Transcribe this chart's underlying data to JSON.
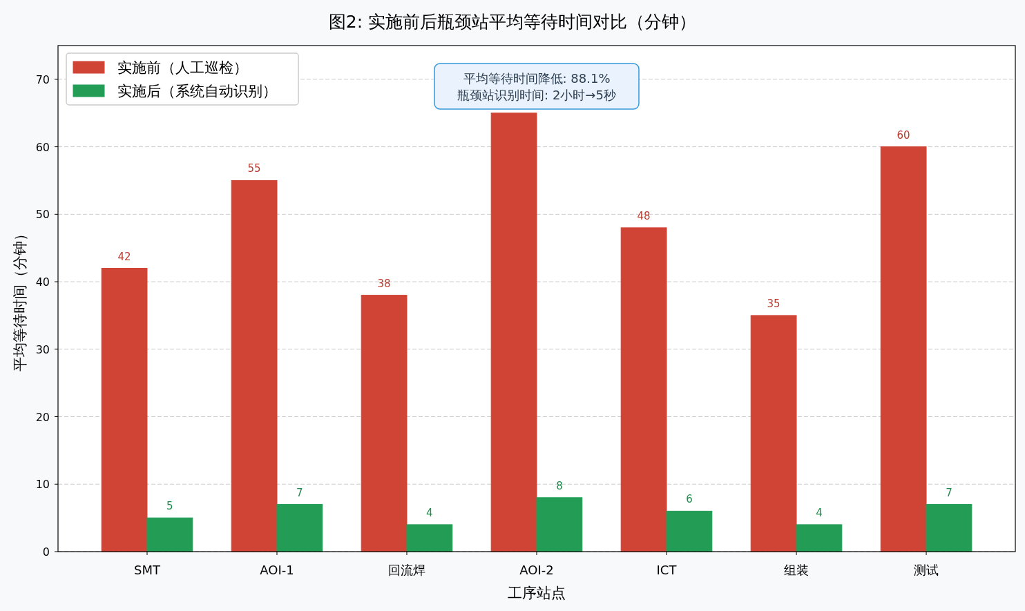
{
  "chart_data": {
    "type": "bar",
    "title": "图2: 实施前后瓶颈站平均等待时间对比（分钟）",
    "xlabel": "工序站点",
    "ylabel": "平均等待时间（分钟）",
    "categories": [
      "SMT",
      "AOI-1",
      "回流焊",
      "AOI-2",
      "ICT",
      "组装",
      "测试"
    ],
    "series": [
      {
        "name": "实施前（人工巡检）",
        "color": "#e74c3c",
        "values": [
          42,
          55,
          38,
          65,
          48,
          35,
          60
        ],
        "value_labels": [
          "42",
          "55",
          "38",
          null,
          "48",
          "35",
          "60"
        ]
      },
      {
        "name": "实施后（系统自动识别）",
        "color": "#27ae60",
        "values": [
          5,
          7,
          4,
          8,
          6,
          4,
          7
        ],
        "value_labels": [
          "5",
          "7",
          "4",
          "8",
          "6",
          "4",
          "7"
        ]
      }
    ],
    "ylim": [
      0,
      75
    ],
    "yticks": [
      0,
      10,
      20,
      30,
      40,
      50,
      60,
      70
    ],
    "grid": "y",
    "legend": "top left",
    "annotations": [
      "平均等待时间降低: 88.1%\n瓶颈站识别时间: 2小时→5秒"
    ]
  }
}
